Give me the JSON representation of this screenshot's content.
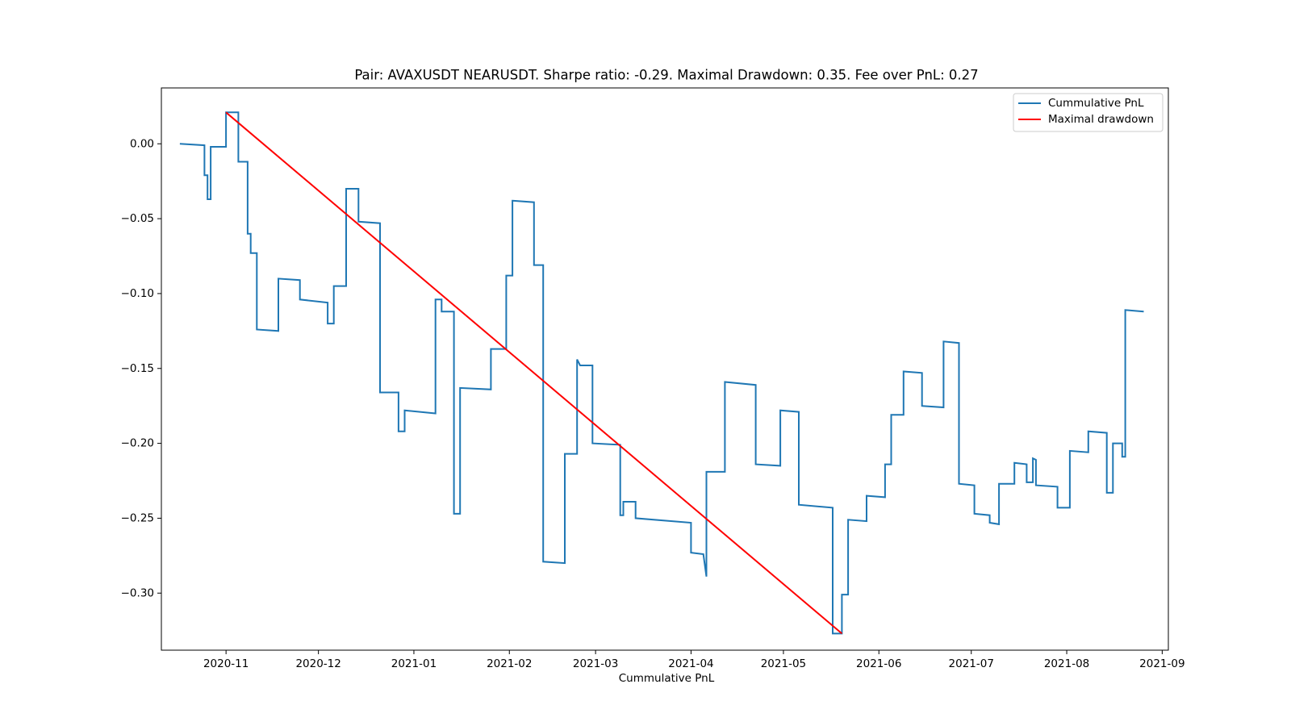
{
  "chart_data": {
    "type": "line",
    "title": "Pair: AVAXUSDT NEARUSDT. Sharpe ratio: -0.29. Maximal Drawdown: 0.35. Fee over PnL: 0.27",
    "xlabel": "Cummulative PnL",
    "ylabel": "",
    "x_axis_type": "date",
    "xlim": [
      "2020-10-11",
      "2021-09-03"
    ],
    "ylim": [
      -0.3381,
      0.0373
    ],
    "xticks": [
      "2020-11-01",
      "2020-12-01",
      "2021-01-01",
      "2021-02-01",
      "2021-03-01",
      "2021-04-01",
      "2021-05-01",
      "2021-06-01",
      "2021-07-01",
      "2021-08-01",
      "2021-09-01"
    ],
    "xtick_labels": [
      "2020-11",
      "2020-12",
      "2021-01",
      "2021-02",
      "2021-03",
      "2021-04",
      "2021-05",
      "2021-06",
      "2021-07",
      "2021-08",
      "2021-09"
    ],
    "yticks": [
      0.0,
      -0.05,
      -0.1,
      -0.15,
      -0.2,
      -0.25,
      -0.3
    ],
    "ytick_labels": [
      "0.00",
      "−0.05",
      "−0.10",
      "−0.15",
      "−0.20",
      "−0.25",
      "−0.30"
    ],
    "grid": false,
    "legend_position": "top-right",
    "series": [
      {
        "name": "Cummulative PnL",
        "color": "#1f77b4",
        "x": [
          "2020-10-17",
          "2020-10-25",
          "2020-10-25",
          "2020-10-26",
          "2020-10-26",
          "2020-10-27",
          "2020-10-27",
          "2020-11-01",
          "2020-11-01",
          "2020-11-05",
          "2020-11-05",
          "2020-11-08",
          "2020-11-08",
          "2020-11-09",
          "2020-11-09",
          "2020-11-11",
          "2020-11-11",
          "2020-11-18",
          "2020-11-18",
          "2020-11-25",
          "2020-11-25",
          "2020-12-04",
          "2020-12-04",
          "2020-12-06",
          "2020-12-06",
          "2020-12-10",
          "2020-12-10",
          "2020-12-14",
          "2020-12-14",
          "2020-12-21",
          "2020-12-21",
          "2020-12-23",
          "2020-12-23",
          "2020-12-27",
          "2020-12-27",
          "2020-12-29",
          "2020-12-29",
          "2021-01-08",
          "2021-01-08",
          "2021-01-10",
          "2021-01-10",
          "2021-01-14",
          "2021-01-14",
          "2021-01-16",
          "2021-01-16",
          "2021-01-26",
          "2021-01-26",
          "2021-01-31",
          "2021-01-31",
          "2021-02-02",
          "2021-02-02",
          "2021-02-09",
          "2021-02-09",
          "2021-02-12",
          "2021-02-12",
          "2021-02-19",
          "2021-02-19",
          "2021-02-23",
          "2021-02-23",
          "2021-02-24",
          "2021-02-24",
          "2021-02-28",
          "2021-02-28",
          "2021-03-09",
          "2021-03-09",
          "2021-03-10",
          "2021-03-10",
          "2021-03-14",
          "2021-03-14",
          "2021-04-01",
          "2021-04-01",
          "2021-04-05",
          "2021-04-05",
          "2021-04-06",
          "2021-04-06",
          "2021-04-07",
          "2021-04-07",
          "2021-04-12",
          "2021-04-12",
          "2021-04-22",
          "2021-04-22",
          "2021-04-30",
          "2021-04-30",
          "2021-05-06",
          "2021-05-06",
          "2021-05-17",
          "2021-05-17",
          "2021-05-20",
          "2021-05-20",
          "2021-05-22",
          "2021-05-22",
          "2021-05-28",
          "2021-05-28",
          "2021-06-03",
          "2021-06-03",
          "2021-06-05",
          "2021-06-05",
          "2021-06-09",
          "2021-06-09",
          "2021-06-15",
          "2021-06-15",
          "2021-06-22",
          "2021-06-22",
          "2021-06-27",
          "2021-06-27",
          "2021-07-02",
          "2021-07-02",
          "2021-07-07",
          "2021-07-07",
          "2021-07-10",
          "2021-07-10",
          "2021-07-15",
          "2021-07-15",
          "2021-07-19",
          "2021-07-19",
          "2021-07-21",
          "2021-07-21",
          "2021-07-22",
          "2021-07-22",
          "2021-07-29",
          "2021-07-29",
          "2021-08-02",
          "2021-08-02",
          "2021-08-08",
          "2021-08-08",
          "2021-08-14",
          "2021-08-14",
          "2021-08-16",
          "2021-08-16",
          "2021-08-19",
          "2021-08-19",
          "2021-08-20",
          "2021-08-20",
          "2021-08-26"
        ],
        "y": [
          0.0,
          -0.001,
          -0.021,
          -0.021,
          -0.037,
          -0.037,
          -0.002,
          -0.002,
          0.021,
          0.021,
          -0.012,
          -0.012,
          -0.06,
          -0.06,
          -0.073,
          -0.073,
          -0.124,
          -0.125,
          -0.09,
          -0.091,
          -0.104,
          -0.106,
          -0.12,
          -0.12,
          -0.095,
          -0.095,
          -0.03,
          -0.03,
          -0.052,
          -0.053,
          -0.166,
          -0.166,
          -0.166,
          -0.166,
          -0.192,
          -0.192,
          -0.178,
          -0.18,
          -0.104,
          -0.104,
          -0.112,
          -0.112,
          -0.247,
          -0.247,
          -0.163,
          -0.164,
          -0.137,
          -0.137,
          -0.088,
          -0.088,
          -0.038,
          -0.039,
          -0.081,
          -0.081,
          -0.279,
          -0.28,
          -0.207,
          -0.207,
          -0.144,
          -0.148,
          -0.148,
          -0.148,
          -0.2,
          -0.201,
          -0.248,
          -0.248,
          -0.239,
          -0.239,
          -0.25,
          -0.253,
          -0.273,
          -0.274,
          -0.274,
          -0.289,
          -0.219,
          -0.219,
          -0.219,
          -0.219,
          -0.159,
          -0.161,
          -0.214,
          -0.215,
          -0.178,
          -0.179,
          -0.241,
          -0.243,
          -0.327,
          -0.327,
          -0.301,
          -0.301,
          -0.251,
          -0.252,
          -0.235,
          -0.236,
          -0.214,
          -0.214,
          -0.181,
          -0.181,
          -0.152,
          -0.153,
          -0.175,
          -0.176,
          -0.132,
          -0.133,
          -0.227,
          -0.228,
          -0.247,
          -0.248,
          -0.253,
          -0.254,
          -0.227,
          -0.227,
          -0.213,
          -0.214,
          -0.226,
          -0.226,
          -0.21,
          -0.211,
          -0.228,
          -0.229,
          -0.243,
          -0.243,
          -0.205,
          -0.206,
          -0.192,
          -0.193,
          -0.233,
          -0.233,
          -0.2,
          -0.2,
          -0.209,
          -0.209,
          -0.111,
          -0.112
        ]
      },
      {
        "name": "Maximal drawdown",
        "color": "#ff0000",
        "x": [
          "2020-11-01",
          "2021-05-20"
        ],
        "y": [
          0.021,
          -0.327
        ]
      }
    ]
  }
}
